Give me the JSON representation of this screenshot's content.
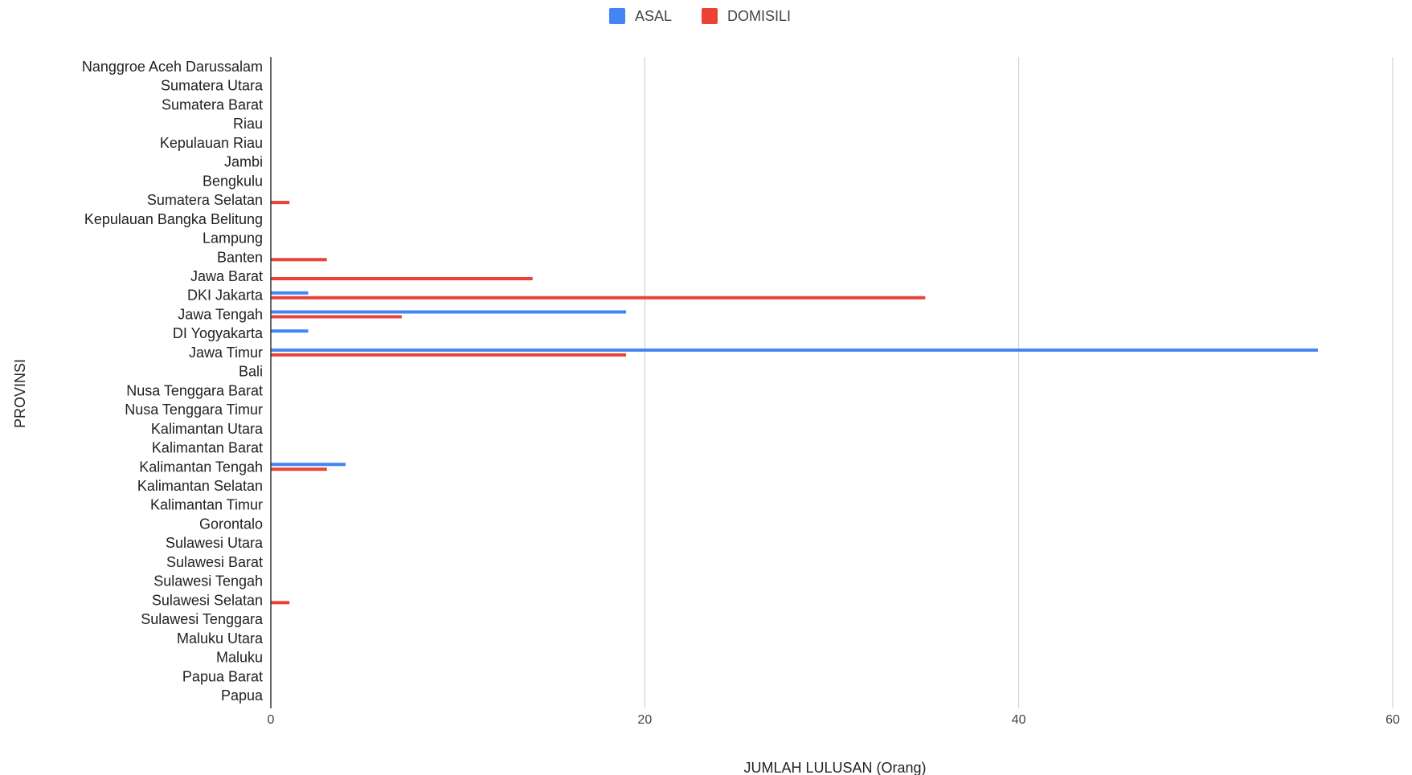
{
  "chart_data": {
    "type": "bar",
    "orientation": "horizontal",
    "categories": [
      "Nanggroe Aceh Darussalam",
      "Sumatera Utara",
      "Sumatera Barat",
      "Riau",
      "Kepulauan Riau",
      "Jambi",
      "Bengkulu",
      "Sumatera Selatan",
      "Kepulauan Bangka Belitung",
      "Lampung",
      "Banten",
      "Jawa Barat",
      "DKI Jakarta",
      "Jawa Tengah",
      "DI Yogyakarta",
      "Jawa Timur",
      "Bali",
      "Nusa Tenggara Barat",
      "Nusa Tenggara Timur",
      "Kalimantan Utara",
      "Kalimantan Barat",
      "Kalimantan Tengah",
      "Kalimantan Selatan",
      "Kalimantan Timur",
      "Gorontalo",
      "Sulawesi Utara",
      "Sulawesi Barat",
      "Sulawesi Tengah",
      "Sulawesi Selatan",
      "Sulawesi Tenggara",
      "Maluku Utara",
      "Maluku",
      "Papua Barat",
      "Papua"
    ],
    "series": [
      {
        "name": "ASAL",
        "color": "#4285f4",
        "values": [
          0,
          0,
          0,
          0,
          0,
          0,
          0,
          0,
          0,
          0,
          0,
          0,
          2,
          19,
          2,
          56,
          0,
          0,
          0,
          0,
          0,
          4,
          0,
          0,
          0,
          0,
          0,
          0,
          0,
          0,
          0,
          0,
          0,
          0
        ]
      },
      {
        "name": "DOMISILI",
        "color": "#ea4335",
        "values": [
          0,
          0,
          0,
          0,
          0,
          0,
          0,
          1,
          0,
          0,
          3,
          14,
          35,
          7,
          0,
          19,
          0,
          0,
          0,
          0,
          0,
          3,
          0,
          0,
          0,
          0,
          0,
          0,
          1,
          0,
          0,
          0,
          0,
          0
        ]
      }
    ],
    "xlabel": "JUMLAH LULUSAN (Orang)",
    "ylabel": "PROVINSI",
    "xlim": [
      0,
      60
    ],
    "xticks": [
      0,
      20,
      40,
      60
    ],
    "xtick_labels": [
      "0",
      "20",
      "40",
      "60"
    ],
    "grid": "vertical",
    "legend_position": "top-center"
  }
}
